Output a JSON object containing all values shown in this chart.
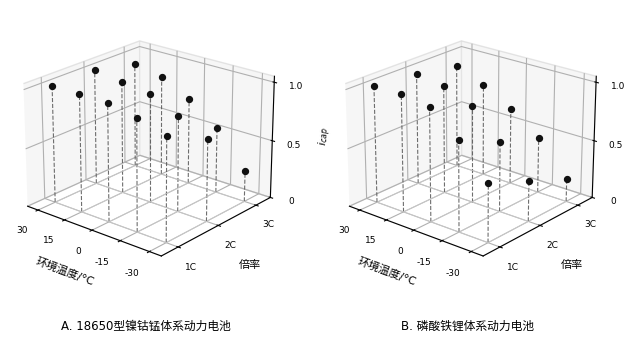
{
  "chart_A": {
    "title": "A. 18650型镍钴锰体系动力电池",
    "temps": [
      30,
      15,
      0,
      -15,
      -30
    ],
    "temp_labels": [
      "30",
      "15",
      "0",
      "-15",
      "-30"
    ],
    "rates": [
      0,
      1,
      2
    ],
    "rate_labels": [
      "1C",
      "2C",
      "3C"
    ],
    "values": [
      [
        1.0,
        1.0,
        1.0,
        0.95,
        0.88
      ],
      [
        1.0,
        0.97,
        0.93,
        0.82,
        0.7
      ],
      [
        0.92,
        0.87,
        0.75,
        0.57,
        0.27
      ]
    ]
  },
  "chart_B": {
    "title": "B. 磷酸铁锂体系动力电池",
    "temps": [
      30,
      15,
      0,
      -15,
      -30
    ],
    "temp_labels": [
      "30",
      "15",
      "0",
      "-15",
      "-30"
    ],
    "rates": [
      0,
      1,
      2
    ],
    "rate_labels": [
      "1C",
      "2C",
      "3C"
    ],
    "values": [
      [
        1.0,
        1.0,
        0.97,
        0.77,
        0.5
      ],
      [
        0.97,
        0.93,
        0.83,
        0.6,
        0.35
      ],
      [
        0.9,
        0.8,
        0.66,
        0.48,
        0.2
      ]
    ]
  },
  "zlabel": "$i_{cap}$",
  "xlabel": "环境温度/°C",
  "ylabel": "倍率",
  "bg_color": "#ffffff",
  "dot_color": "#111111",
  "line_color": "#555555",
  "grid_color": "#cccccc",
  "title_fontsize": 8.5,
  "tick_fontsize": 6.5,
  "label_fontsize": 8,
  "elev": 22,
  "azim": -50
}
